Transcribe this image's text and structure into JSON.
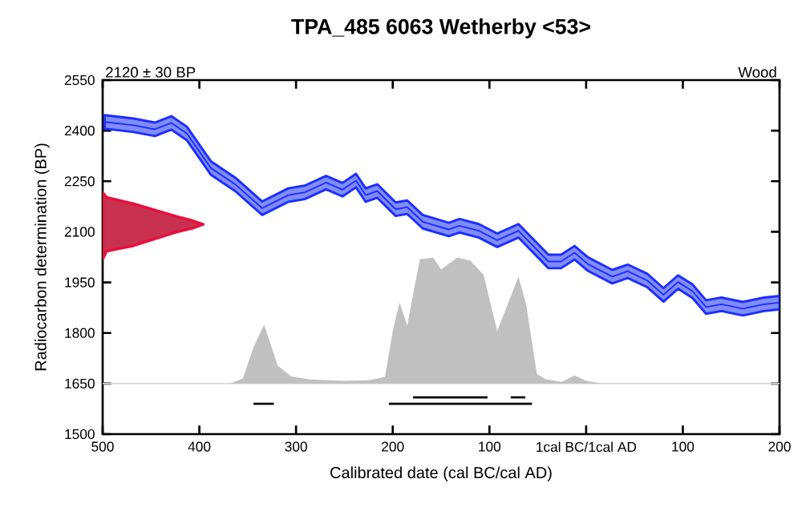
{
  "chart_data": {
    "type": "line",
    "title": "TPA_485 6063 Wetherby <53>",
    "xlabel": "Calibrated date (cal BC/cal AD)",
    "ylabel": "Radiocarbon determination (BP)",
    "annotations": [
      "2120 ± 30 BP",
      "Wood"
    ],
    "xlim": [
      -500,
      200
    ],
    "xticks": [
      {
        "value": -500,
        "label": "500"
      },
      {
        "value": -400,
        "label": "400"
      },
      {
        "value": -300,
        "label": "300"
      },
      {
        "value": -200,
        "label": "200"
      },
      {
        "value": -100,
        "label": "100"
      },
      {
        "value": 0,
        "label": "1cal BC/1cal AD"
      },
      {
        "value": 100,
        "label": "100"
      },
      {
        "value": 200,
        "label": "200"
      }
    ],
    "ylim": [
      1500,
      2550
    ],
    "yticks": [
      1500,
      1650,
      1800,
      1950,
      2100,
      2250,
      2400,
      2550
    ],
    "ref_lines": [
      {
        "axis": "y",
        "value": 1650,
        "color": "#d8d8d8"
      }
    ],
    "series": [
      {
        "type": "area",
        "color": "#c0c0c0",
        "x": [
          -368,
          -355,
          -344,
          -333,
          -319,
          -305,
          -286,
          -250,
          -225,
          -208,
          -200,
          -193,
          -185,
          -172,
          -158,
          -150,
          -133,
          -120,
          -106,
          -92,
          -70,
          -62,
          -51,
          -42,
          -25,
          -12,
          0,
          16
        ],
        "values": [
          1650,
          1665,
          1758,
          1825,
          1703,
          1671,
          1662,
          1658,
          1660,
          1670,
          1805,
          1890,
          1822,
          2019,
          2023,
          1988,
          2024,
          2015,
          1972,
          1805,
          1967,
          1885,
          1679,
          1663,
          1655,
          1674,
          1658,
          1650
        ]
      },
      {
        "color": "#1a2eff",
        "x": [
          -498,
          -468,
          -446,
          -429,
          -413,
          -388,
          -363,
          -335,
          -308,
          -291,
          -269,
          -252,
          -238,
          -228,
          -216,
          -197,
          -185,
          -169,
          -142,
          -131,
          -111,
          -92,
          -70,
          -39,
          -26,
          -12,
          2,
          27,
          43,
          63,
          80,
          95,
          110,
          124,
          140,
          162,
          184,
          200
        ],
        "values": [
          2426,
          2416,
          2404,
          2423,
          2392,
          2289,
          2241,
          2170,
          2209,
          2217,
          2246,
          2225,
          2252,
          2209,
          2221,
          2167,
          2173,
          2130,
          2107,
          2118,
          2103,
          2075,
          2103,
          2012,
          2012,
          2038,
          2004,
          1967,
          1983,
          1956,
          1913,
          1951,
          1924,
          1877,
          1885,
          1872,
          1885,
          1890
        ],
        "lower": [
          2406,
          2396,
          2384,
          2403,
          2372,
          2269,
          2221,
          2150,
          2189,
          2197,
          2226,
          2205,
          2232,
          2189,
          2201,
          2147,
          2153,
          2110,
          2087,
          2098,
          2083,
          2055,
          2083,
          1992,
          1992,
          2018,
          1984,
          1947,
          1963,
          1936,
          1893,
          1931,
          1904,
          1857,
          1865,
          1852,
          1865,
          1870
        ],
        "upper": [
          2446,
          2436,
          2424,
          2443,
          2412,
          2309,
          2261,
          2190,
          2229,
          2237,
          2266,
          2245,
          2272,
          2229,
          2241,
          2187,
          2193,
          2150,
          2127,
          2138,
          2123,
          2095,
          2123,
          2032,
          2032,
          2058,
          2024,
          1987,
          2003,
          1976,
          1933,
          1971,
          1944,
          1897,
          1905,
          1892,
          1905,
          1910
        ]
      },
      {
        "type": "area",
        "color": "#e8103c",
        "x": [
          -500,
          -496,
          -468,
          -424,
          -407,
          -396,
          -407,
          -424,
          -468,
          -496,
          -500
        ],
        "values": [
          2217,
          2202,
          2183,
          2146,
          2133,
          2122,
          2111,
          2099,
          2059,
          2043,
          2019
        ]
      },
      {
        "type": "line",
        "color": "#000000",
        "x": [
          -179,
          -102
        ],
        "values": [
          1609,
          1609
        ]
      },
      {
        "type": "line",
        "color": "#000000",
        "x": [
          -78,
          -63
        ],
        "values": [
          1609,
          1609
        ]
      },
      {
        "type": "line",
        "color": "#000000",
        "x": [
          -344,
          -323
        ],
        "values": [
          1590,
          1590
        ]
      },
      {
        "type": "line",
        "color": "#000000",
        "x": [
          -204,
          -56
        ],
        "values": [
          1590,
          1590
        ]
      }
    ]
  }
}
